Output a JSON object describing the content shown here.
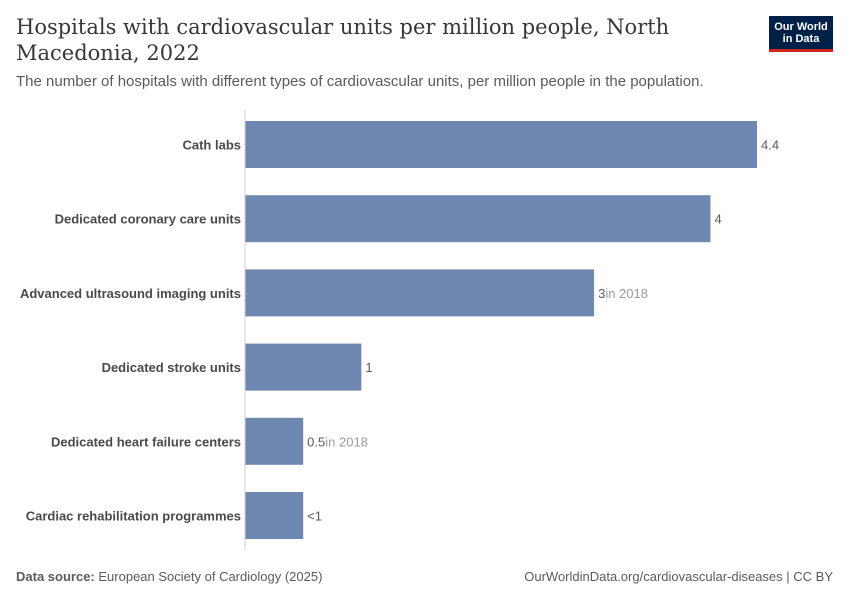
{
  "header": {
    "title": "Hospitals with cardiovascular units per million people, North Macedonia, 2022",
    "subtitle": "The number of hospitals with different types of cardiovascular units, per million people in the population.",
    "logo_line1": "Our World",
    "logo_line2": "in Data"
  },
  "footer": {
    "source_label": "Data source:",
    "source_text": "European Society of Cardiology (2025)",
    "url": "OurWorldinData.org/cardiovascular-diseases | CC BY"
  },
  "colors": {
    "bar": "#6e88b2",
    "text": "#5b5b5b",
    "axis": "#d0d0d0",
    "brand": "#002147",
    "brand_accent": "#ce261e"
  },
  "chart_data": {
    "type": "bar",
    "orientation": "horizontal",
    "categories": [
      "Cath labs",
      "Dedicated coronary care units",
      "Advanced ultrasound imaging units",
      "Dedicated stroke units",
      "Dedicated heart failure centers",
      "Cardiac rehabilitation programmes"
    ],
    "values": [
      4.4,
      4,
      3,
      1,
      0.5,
      0.5
    ],
    "value_labels": [
      "4.4",
      "4",
      "3",
      "1",
      "0.5",
      "<1"
    ],
    "label_notes": [
      "",
      "",
      "in 2018",
      "",
      "in 2018",
      ""
    ],
    "xlim": [
      0,
      4.4
    ]
  }
}
